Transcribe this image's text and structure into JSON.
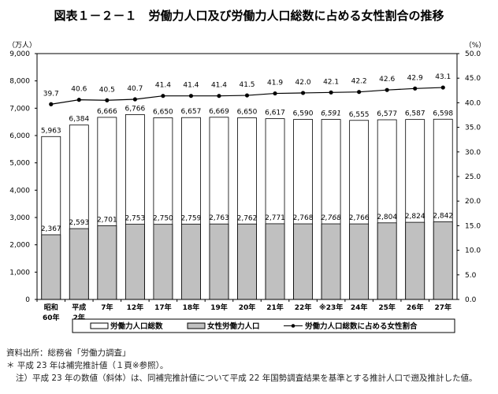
{
  "chart_data": {
    "type": "bar+line",
    "title": "図表１－２－１　労働力人口及び労働力人口総数に占める女性割合の推移",
    "y_left_unit": "（万人）",
    "y_right_unit": "（%）",
    "ylim_left": [
      0,
      9000
    ],
    "ylim_right": [
      0,
      50
    ],
    "left_ticks": [
      "0",
      "1,000",
      "2,000",
      "3,000",
      "4,000",
      "5,000",
      "6,000",
      "7,000",
      "8,000",
      "9,000"
    ],
    "right_ticks": [
      "0.0",
      "5.0",
      "10.0",
      "15.0",
      "20.0",
      "25.0",
      "30.0",
      "35.0",
      "40.0",
      "45.0",
      "50.0"
    ],
    "categories": [
      [
        "昭和",
        "60年"
      ],
      [
        "平成",
        "2年"
      ],
      [
        "7年"
      ],
      [
        "12年"
      ],
      [
        "17年"
      ],
      [
        "18年"
      ],
      [
        "19年"
      ],
      [
        "20年"
      ],
      [
        "21年"
      ],
      [
        "22年"
      ],
      [
        "※23年"
      ],
      [
        "24年"
      ],
      [
        "25年"
      ],
      [
        "26年"
      ],
      [
        "27年"
      ]
    ],
    "italic_index": 10,
    "series": [
      {
        "name": "労働力人口総数",
        "type": "bar",
        "color": "#ffffff",
        "values": [
          5963,
          6384,
          6666,
          6766,
          6650,
          6657,
          6669,
          6650,
          6617,
          6590,
          6591,
          6555,
          6577,
          6587,
          6598
        ]
      },
      {
        "name": "女性労働力人口",
        "type": "bar",
        "color": "#c0c0c0",
        "values": [
          2367,
          2593,
          2701,
          2753,
          2750,
          2759,
          2763,
          2762,
          2771,
          2768,
          2768,
          2766,
          2804,
          2824,
          2842
        ]
      },
      {
        "name": "労働力人口総数に占める女性割合",
        "type": "line",
        "axis": "right",
        "color": "#000000",
        "values": [
          39.7,
          40.6,
          40.5,
          40.7,
          41.4,
          41.4,
          41.4,
          41.5,
          41.9,
          42.0,
          42.1,
          42.2,
          42.6,
          42.9,
          43.1
        ]
      }
    ],
    "legend_position": "bottom",
    "grid": false
  },
  "notes": [
    "資料出所：総務省「労働力調査」",
    "＊ 平成 23 年は補完推計値（１頁※参照）。",
    "注）平成 23 年の数値（斜体）は、同補完推計値について平成 22 年国勢調査結果を基準とする推計人口で遡及推計した値。"
  ]
}
